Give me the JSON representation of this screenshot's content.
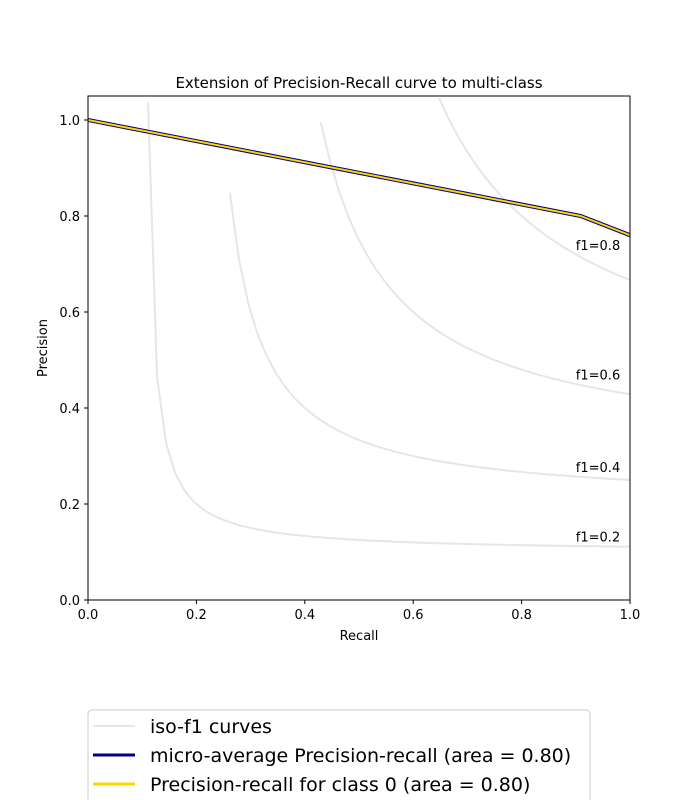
{
  "chart_data": {
    "type": "line",
    "title": "Extension of Precision-Recall curve to multi-class",
    "xlabel": "Recall",
    "ylabel": "Precision",
    "xlim": [
      0.0,
      1.0
    ],
    "ylim": [
      0.0,
      1.05
    ],
    "xticks": [
      "0.0",
      "0.2",
      "0.4",
      "0.6",
      "0.8",
      "1.0"
    ],
    "yticks": [
      "0.0",
      "0.2",
      "0.4",
      "0.6",
      "0.8",
      "1.0"
    ],
    "grid": false,
    "legend_position": "bottom",
    "iso_f1": {
      "values": [
        0.2,
        0.4,
        0.6,
        0.8
      ],
      "labels": [
        "f1=0.2",
        "f1=0.4",
        "f1=0.6",
        "f1=0.8"
      ],
      "color": "#e6e6e6"
    },
    "series": [
      {
        "name": "micro-average Precision-recall (area = 0.80)",
        "color": "#000080",
        "x": [
          0.0,
          0.909,
          1.0
        ],
        "y": [
          1.0,
          0.8,
          0.76
        ]
      },
      {
        "name": "Precision-recall for class 0 (area = 0.80)",
        "color": "#ffd700",
        "x": [
          0.0,
          0.909,
          1.0
        ],
        "y": [
          1.0,
          0.8,
          0.76
        ]
      }
    ],
    "legend": [
      {
        "label": "iso-f1 curves",
        "color": "#e6e6e6"
      },
      {
        "label": "micro-average Precision-recall (area = 0.80)",
        "color": "#000080"
      },
      {
        "label": "Precision-recall for class 0 (area = 0.80)",
        "color": "#ffd700"
      }
    ]
  }
}
